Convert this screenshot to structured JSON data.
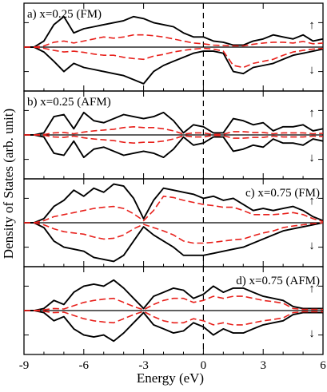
{
  "chart_data": {
    "type": "line",
    "xlabel": "Energy (eV)",
    "ylabel": "Density of States (arb. unit)",
    "xlim": [
      -9,
      6
    ],
    "xticks": [
      -9,
      -6,
      -3,
      0,
      3,
      6
    ],
    "x_tick_labels": [
      "-9",
      "-6",
      "-3",
      "0",
      "3",
      "6"
    ],
    "fermi_level": 0,
    "spin_up_symbol": "↑",
    "spin_down_symbol": "↓",
    "series_styles": {
      "total": {
        "color": "#000000",
        "dash": "solid"
      },
      "partial": {
        "color": "#e8211c",
        "dash": "dashed"
      }
    },
    "panels": [
      {
        "label": "a) x=0.25 (FM)",
        "label_position": "top-left",
        "ylim": [
          -1,
          1
        ],
        "up": {
          "x": [
            -9,
            -8.5,
            -8,
            -7.5,
            -7,
            -6.5,
            -6,
            -5.5,
            -5,
            -4.5,
            -4,
            -3.5,
            -3,
            -2.5,
            -2,
            -1.5,
            -1,
            -0.5,
            0,
            0.5,
            1,
            1.5,
            2,
            2.5,
            3,
            3.5,
            4,
            4.5,
            5,
            5.5,
            6
          ],
          "total": [
            0,
            0,
            0.15,
            0.55,
            0.75,
            0.35,
            0.45,
            0.5,
            0.55,
            0.6,
            0.65,
            0.75,
            0.7,
            0.6,
            0.55,
            0.5,
            0.35,
            0.25,
            0.25,
            0.15,
            0.12,
            0.05,
            0.05,
            0.15,
            0.2,
            0.3,
            0.25,
            0.2,
            0.3,
            0.15,
            0.2
          ],
          "partial": [
            0,
            0,
            0.03,
            0.12,
            0.15,
            0.1,
            0.15,
            0.2,
            0.25,
            0.22,
            0.25,
            0.3,
            0.3,
            0.28,
            0.25,
            0.2,
            0.15,
            0.1,
            0.08,
            0.05,
            0.04,
            0.03,
            0.03,
            0.07,
            0.1,
            0.12,
            0.12,
            0.1,
            0.14,
            0.08,
            0.1
          ]
        },
        "down": {
          "x": [
            -9,
            -8.5,
            -8,
            -7.5,
            -7,
            -6.5,
            -6,
            -5.5,
            -5,
            -4.5,
            -4,
            -3.5,
            -3,
            -2.5,
            -2,
            -1.5,
            -1,
            -0.5,
            0,
            0.5,
            1,
            1.5,
            2,
            2.5,
            3,
            3.5,
            4,
            4.5,
            5,
            5.5,
            6
          ],
          "total": [
            0,
            0,
            0.12,
            0.35,
            0.6,
            0.4,
            0.5,
            0.55,
            0.6,
            0.65,
            0.7,
            0.8,
            0.9,
            0.6,
            0.45,
            0.35,
            0.25,
            0.15,
            0.1,
            0.1,
            0.15,
            0.6,
            0.65,
            0.5,
            0.45,
            0.4,
            0.3,
            0.2,
            0.15,
            0.1,
            0.05
          ],
          "partial": [
            0,
            0,
            0.03,
            0.08,
            0.12,
            0.1,
            0.13,
            0.17,
            0.2,
            0.2,
            0.25,
            0.28,
            0.3,
            0.22,
            0.18,
            0.12,
            0.08,
            0.05,
            0.03,
            0.05,
            0.1,
            0.45,
            0.5,
            0.4,
            0.35,
            0.3,
            0.2,
            0.12,
            0.08,
            0.05,
            0.03
          ]
        }
      },
      {
        "label": "b) x=0.25 (AFM)",
        "label_position": "top-left",
        "ylim": [
          -1,
          1
        ],
        "up": {
          "x": [
            -9,
            -8.5,
            -8,
            -7.5,
            -7,
            -6.5,
            -6,
            -5.5,
            -5,
            -4.5,
            -4,
            -3.5,
            -3,
            -2.5,
            -2,
            -1.5,
            -1,
            -0.5,
            0,
            0.5,
            1,
            1.5,
            2,
            2.5,
            3,
            3.5,
            4,
            4.5,
            5,
            5.5,
            6
          ],
          "total": [
            0,
            0,
            0.05,
            0.45,
            0.5,
            0.15,
            0.55,
            0.35,
            0.3,
            0.4,
            0.5,
            0.45,
            0.4,
            0.45,
            0.55,
            0.35,
            0.05,
            0.25,
            0.2,
            0.05,
            0.05,
            0.4,
            0.35,
            0.25,
            0.3,
            0.1,
            0.2,
            0.2,
            0.25,
            0.1,
            0.15
          ],
          "partial": [
            0,
            0,
            0.01,
            0.05,
            0.06,
            0.03,
            0.07,
            0.1,
            0.12,
            0.14,
            0.18,
            0.2,
            0.18,
            0.18,
            0.15,
            0.1,
            0.02,
            0.05,
            0.05,
            0.01,
            0.02,
            0.08,
            0.08,
            0.06,
            0.06,
            0.03,
            0.05,
            0.05,
            0.05,
            0.03,
            0.04
          ]
        },
        "down": {
          "x": [
            -9,
            -8.5,
            -8,
            -7.5,
            -7,
            -6.5,
            -6,
            -5.5,
            -5,
            -4.5,
            -4,
            -3.5,
            -3,
            -2.5,
            -2,
            -1.5,
            -1,
            -0.5,
            0,
            0.5,
            1,
            1.5,
            2,
            2.5,
            3,
            3.5,
            4,
            4.5,
            5,
            5.5,
            6
          ],
          "total": [
            0,
            0,
            0.05,
            0.45,
            0.5,
            0.15,
            0.55,
            0.35,
            0.3,
            0.4,
            0.5,
            0.45,
            0.4,
            0.45,
            0.55,
            0.35,
            0.05,
            0.25,
            0.2,
            0.05,
            0.05,
            0.4,
            0.35,
            0.25,
            0.3,
            0.1,
            0.2,
            0.2,
            0.25,
            0.1,
            0.15
          ],
          "partial": [
            0,
            0,
            0.01,
            0.05,
            0.06,
            0.03,
            0.07,
            0.1,
            0.12,
            0.14,
            0.18,
            0.2,
            0.18,
            0.18,
            0.15,
            0.1,
            0.02,
            0.05,
            0.05,
            0.01,
            0.02,
            0.08,
            0.08,
            0.06,
            0.06,
            0.03,
            0.05,
            0.05,
            0.05,
            0.03,
            0.04
          ]
        }
      },
      {
        "label": "c) x=0.75 (FM)",
        "label_position": "top-right",
        "ylim": [
          -1,
          1
        ],
        "up": {
          "x": [
            -9,
            -8.5,
            -8,
            -7.5,
            -7,
            -6.5,
            -6,
            -5.5,
            -5,
            -4.5,
            -4,
            -3.5,
            -3,
            -2.5,
            -2,
            -1.5,
            -1,
            -0.5,
            0,
            0.5,
            1,
            1.5,
            2,
            2.5,
            3,
            3.5,
            4,
            4.5,
            5,
            5.5,
            6
          ],
          "total": [
            0,
            0,
            0.1,
            0.4,
            0.55,
            0.8,
            0.65,
            0.85,
            0.75,
            0.95,
            0.9,
            0.6,
            0.1,
            0.55,
            0.85,
            0.8,
            0.75,
            0.7,
            0.6,
            0.65,
            0.55,
            0.6,
            0.45,
            0.3,
            0.35,
            0.3,
            0.35,
            0.4,
            0.3,
            0.15,
            0.05
          ],
          "partial": [
            0,
            0,
            0.05,
            0.15,
            0.2,
            0.25,
            0.3,
            0.35,
            0.38,
            0.4,
            0.35,
            0.22,
            0.05,
            0.3,
            0.65,
            0.62,
            0.55,
            0.5,
            0.45,
            0.42,
            0.38,
            0.38,
            0.3,
            0.2,
            0.2,
            0.2,
            0.22,
            0.25,
            0.2,
            0.1,
            0.03
          ]
        },
        "down": {
          "x": [
            -9,
            -8.5,
            -8,
            -7.5,
            -7,
            -6.5,
            -6,
            -5.5,
            -5,
            -4.5,
            -4,
            -3.5,
            -3,
            -2.5,
            -2,
            -1.5,
            -1,
            -0.5,
            0,
            0.5,
            1,
            1.5,
            2,
            2.5,
            3,
            3.5,
            4,
            4.5,
            5,
            5.5,
            6
          ],
          "total": [
            0,
            0,
            0.12,
            0.45,
            0.6,
            0.65,
            0.7,
            0.85,
            0.9,
            0.95,
            0.8,
            0.45,
            0.1,
            0.3,
            0.45,
            0.6,
            0.8,
            0.8,
            0.8,
            0.75,
            0.7,
            0.65,
            0.6,
            0.5,
            0.4,
            0.3,
            0.2,
            0.15,
            0.1,
            0.05,
            0
          ],
          "partial": [
            0,
            0,
            0.05,
            0.15,
            0.22,
            0.25,
            0.28,
            0.35,
            0.4,
            0.38,
            0.3,
            0.15,
            0.04,
            0.12,
            0.2,
            0.3,
            0.45,
            0.5,
            0.5,
            0.48,
            0.45,
            0.42,
            0.4,
            0.32,
            0.25,
            0.2,
            0.12,
            0.08,
            0.05,
            0.02,
            0
          ]
        }
      },
      {
        "label": "d) x=0.75 (AFM)",
        "label_position": "top-right",
        "ylim": [
          -1,
          1
        ],
        "up": {
          "x": [
            -9,
            -8.5,
            -8,
            -7.5,
            -7,
            -6.5,
            -6,
            -5.5,
            -5,
            -4.5,
            -4,
            -3.5,
            -3,
            -2.5,
            -2,
            -1.5,
            -1,
            -0.5,
            0,
            0.5,
            1,
            1.5,
            2,
            2.5,
            3,
            3.5,
            4,
            4.5,
            5,
            5.5,
            6
          ],
          "total": [
            0,
            0,
            0.05,
            0.25,
            0.15,
            0.45,
            0.6,
            0.65,
            0.6,
            0.75,
            0.55,
            0.3,
            0.05,
            0.35,
            0.45,
            0.55,
            0.5,
            0.3,
            0.4,
            0.6,
            0.45,
            0.55,
            0.55,
            0.45,
            0.35,
            0.3,
            0.25,
            0.1,
            0.05,
            0.05,
            0.05
          ],
          "partial": [
            0,
            0,
            0.02,
            0.05,
            0.04,
            0.12,
            0.2,
            0.25,
            0.28,
            0.3,
            0.2,
            0.1,
            0.02,
            0.15,
            0.25,
            0.3,
            0.3,
            0.2,
            0.25,
            0.35,
            0.3,
            0.35,
            0.35,
            0.3,
            0.25,
            0.22,
            0.18,
            0.05,
            0.03,
            0.03,
            0.03
          ]
        },
        "down": {
          "x": [
            -9,
            -8.5,
            -8,
            -7.5,
            -7,
            -6.5,
            -6,
            -5.5,
            -5,
            -4.5,
            -4,
            -3.5,
            -3,
            -2.5,
            -2,
            -1.5,
            -1,
            -0.5,
            0,
            0.5,
            1,
            1.5,
            2,
            2.5,
            3,
            3.5,
            4,
            4.5,
            5,
            5.5,
            6
          ],
          "total": [
            0,
            0,
            0.05,
            0.25,
            0.15,
            0.45,
            0.6,
            0.65,
            0.6,
            0.75,
            0.55,
            0.3,
            0.05,
            0.35,
            0.45,
            0.55,
            0.5,
            0.3,
            0.4,
            0.6,
            0.45,
            0.55,
            0.55,
            0.45,
            0.35,
            0.3,
            0.25,
            0.1,
            0.05,
            0.05,
            0.05
          ],
          "partial": [
            0,
            0,
            0.02,
            0.05,
            0.04,
            0.12,
            0.2,
            0.25,
            0.28,
            0.3,
            0.2,
            0.1,
            0.02,
            0.15,
            0.25,
            0.3,
            0.3,
            0.2,
            0.25,
            0.35,
            0.3,
            0.35,
            0.35,
            0.3,
            0.25,
            0.22,
            0.18,
            0.05,
            0.03,
            0.03,
            0.03
          ]
        }
      }
    ]
  }
}
